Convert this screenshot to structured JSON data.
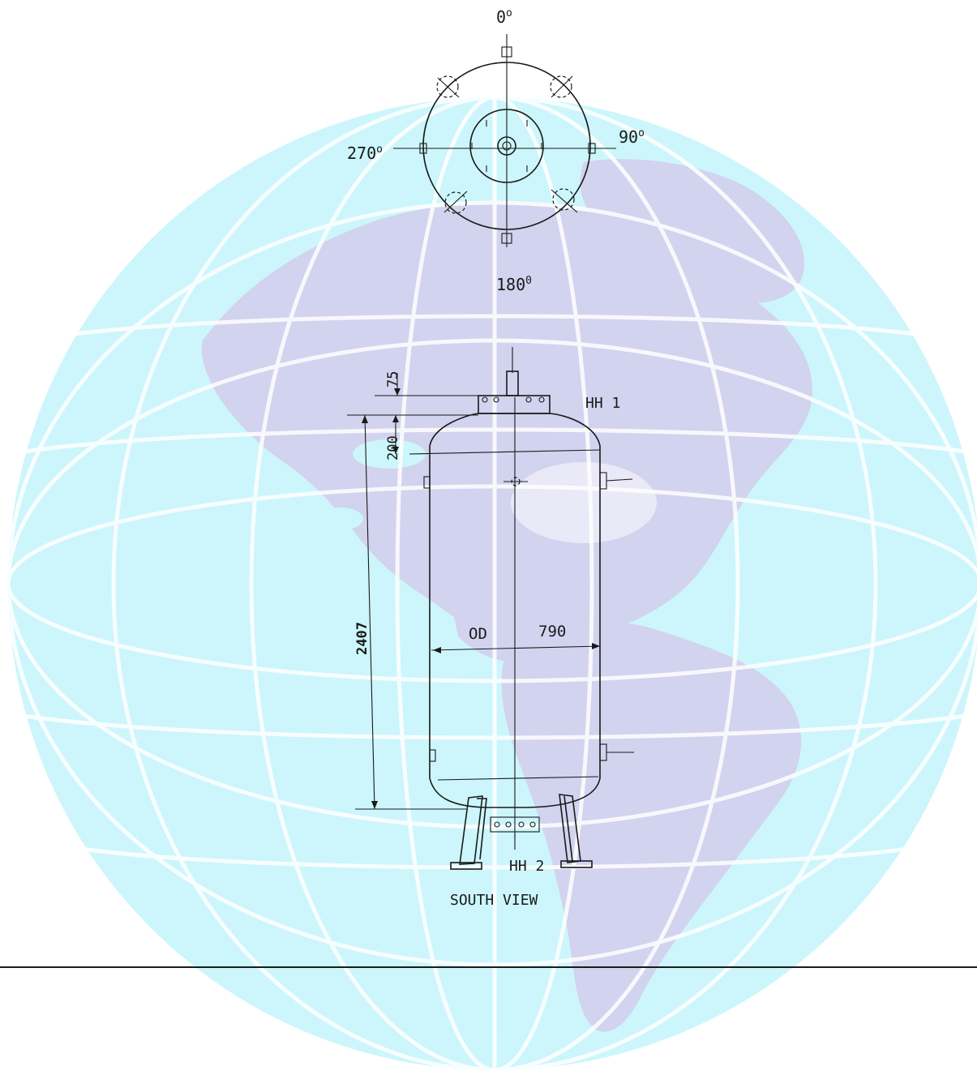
{
  "plan_view": {
    "angle_0": "0",
    "angle_90": "90",
    "angle_180": "180",
    "angle_270": "270",
    "degree_0": "o",
    "degree_90": "o",
    "degree_180": "0",
    "degree_270": "o"
  },
  "elevation": {
    "nozzle_top_label": "HH 1",
    "nozzle_bottom_label": "HH 2",
    "dim_75": "75",
    "dim_200": "200",
    "dim_height": "2407",
    "od_label": "OD",
    "od_value": "790",
    "view_title": "SOUTH VIEW"
  },
  "colors": {
    "globe_ocean": "#ccf6fb",
    "globe_grid": "#ffffff",
    "land": "#d2d3ee",
    "ink": "#1a1a1a"
  }
}
